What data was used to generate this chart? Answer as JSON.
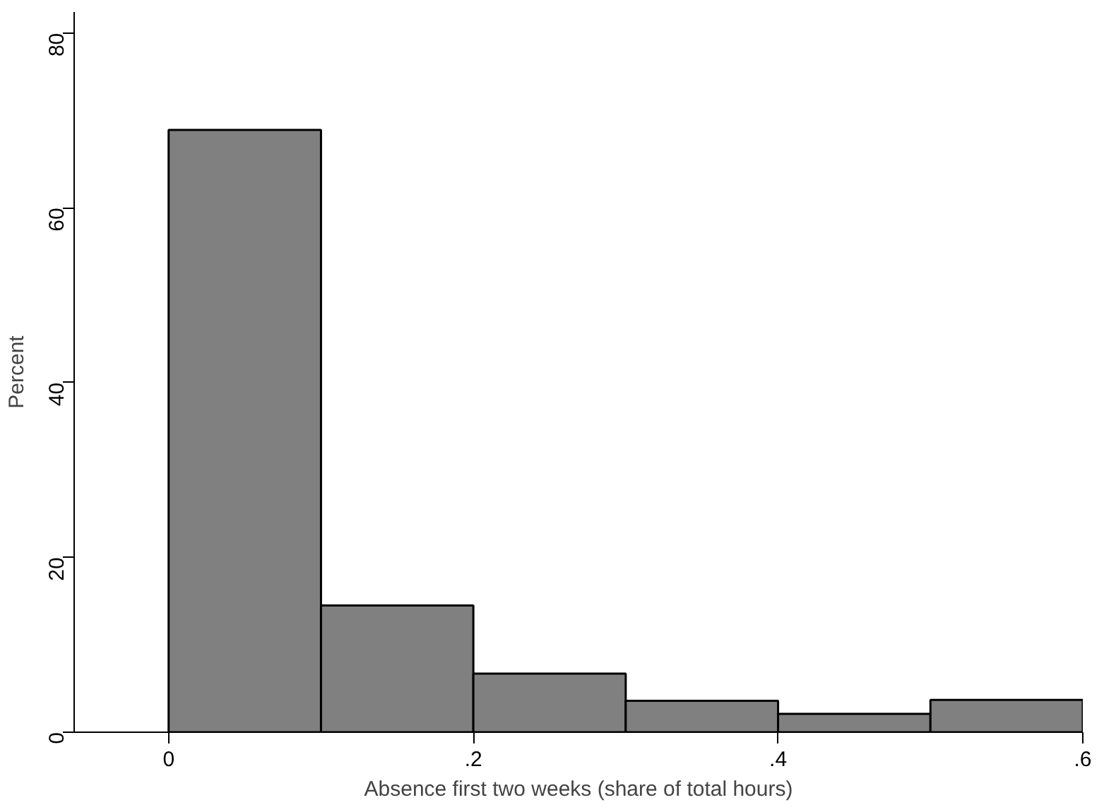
{
  "chart_data": {
    "type": "histogram",
    "xlabel": "Absence first two weeks (share of total hours)",
    "ylabel": "Percent",
    "bins": [
      0,
      0.1,
      0.2,
      0.3,
      0.4,
      0.5,
      0.6
    ],
    "values": [
      68.9,
      14.5,
      6.7,
      3.6,
      2.1,
      3.7
    ],
    "color": "#808080",
    "xlim": [
      -0.062,
      0.6
    ],
    "ylim": [
      0,
      82.4
    ],
    "xticks": [
      0,
      {
        "value": 0.2,
        "label": ".2"
      },
      {
        "value": 0.4,
        "label": ".4"
      },
      {
        "value": 0.6,
        "label": ".6"
      }
    ],
    "yticks": [
      0,
      20,
      40,
      60,
      80
    ],
    "grid": false
  }
}
